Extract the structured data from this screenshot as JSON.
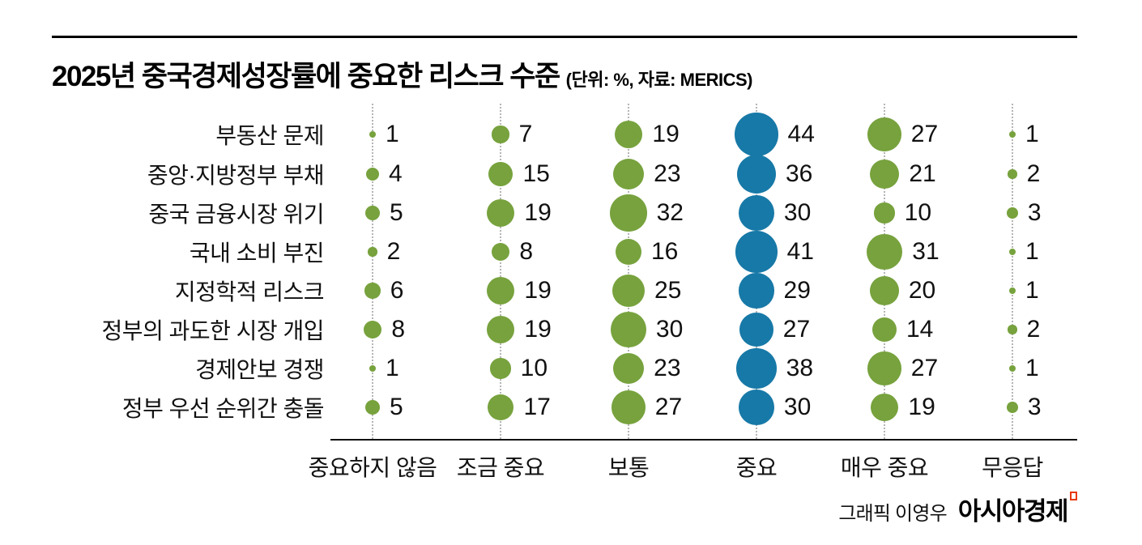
{
  "header": {
    "title": "2025년 중국경제성장률에 중요한 리스크 수준",
    "subtitle": "(단위: %, 자료: MERICS)"
  },
  "footer": {
    "credit": "그래픽 이영우",
    "publisher": "아시아경제"
  },
  "chart_data": {
    "type": "bubble",
    "unit": "%",
    "source": "MERICS",
    "categories": [
      "중요하지 않음",
      "조금 중요",
      "보통",
      "중요",
      "매우 중요",
      "무응답"
    ],
    "rows": [
      {
        "label": "부동산 문제",
        "values": [
          1,
          7,
          19,
          44,
          27,
          1
        ]
      },
      {
        "label": "중앙·지방정부 부채",
        "values": [
          4,
          15,
          23,
          36,
          21,
          2
        ]
      },
      {
        "label": "중국 금융시장 위기",
        "values": [
          5,
          19,
          32,
          30,
          10,
          3
        ]
      },
      {
        "label": "국내 소비 부진",
        "values": [
          2,
          8,
          16,
          41,
          31,
          1
        ]
      },
      {
        "label": "지정학적 리스크",
        "values": [
          6,
          19,
          25,
          29,
          20,
          1
        ]
      },
      {
        "label": "정부의 과도한 시장 개입",
        "values": [
          8,
          19,
          30,
          27,
          14,
          2
        ]
      },
      {
        "label": "경제안보 경쟁",
        "values": [
          1,
          10,
          23,
          38,
          27,
          1
        ]
      },
      {
        "label": "정부 우선 순위간 충돌",
        "values": [
          5,
          17,
          27,
          30,
          19,
          3
        ]
      }
    ],
    "bubble_color": "#77A23D",
    "highlight_color": "#1779A7",
    "highlight_column": "중요",
    "highlight_column_index": 3,
    "legend_position": "bottom",
    "grid": "dotted-vertical"
  }
}
